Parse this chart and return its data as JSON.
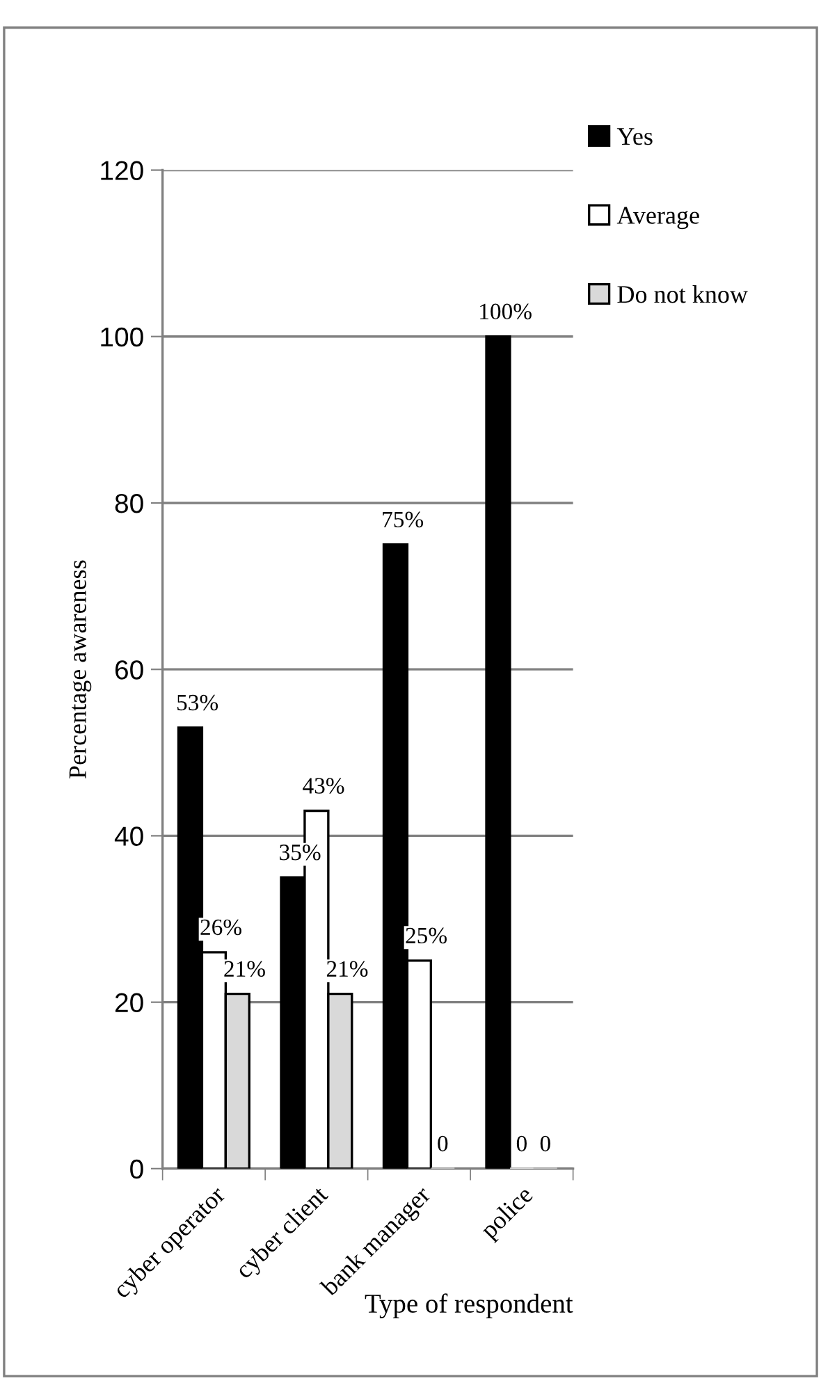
{
  "chart_data": {
    "type": "bar",
    "ylabel": "Percentage awareness",
    "xlabel": "Type of respondent",
    "categories": [
      "cyber operator",
      "cyber client",
      "bank manager",
      "police"
    ],
    "series": [
      {
        "name": "Yes",
        "color": "#000000",
        "values": [
          53,
          35,
          75,
          100
        ],
        "value_labels": [
          "53%",
          "35%",
          "75%",
          "100%"
        ]
      },
      {
        "name": "Average",
        "color": "#ffffff",
        "values": [
          26,
          43,
          25,
          0
        ],
        "value_labels": [
          "26%",
          "43%",
          "25%",
          "0"
        ]
      },
      {
        "name": "Do not know",
        "color": "#d9d9d9",
        "values": [
          21,
          21,
          0,
          0
        ],
        "value_labels": [
          "21%",
          "21%",
          "0",
          "0"
        ]
      }
    ],
    "ylim": [
      0,
      120
    ],
    "yticks": [
      0,
      20,
      40,
      60,
      80,
      100,
      120
    ],
    "grid": "y",
    "legend": "top right"
  }
}
